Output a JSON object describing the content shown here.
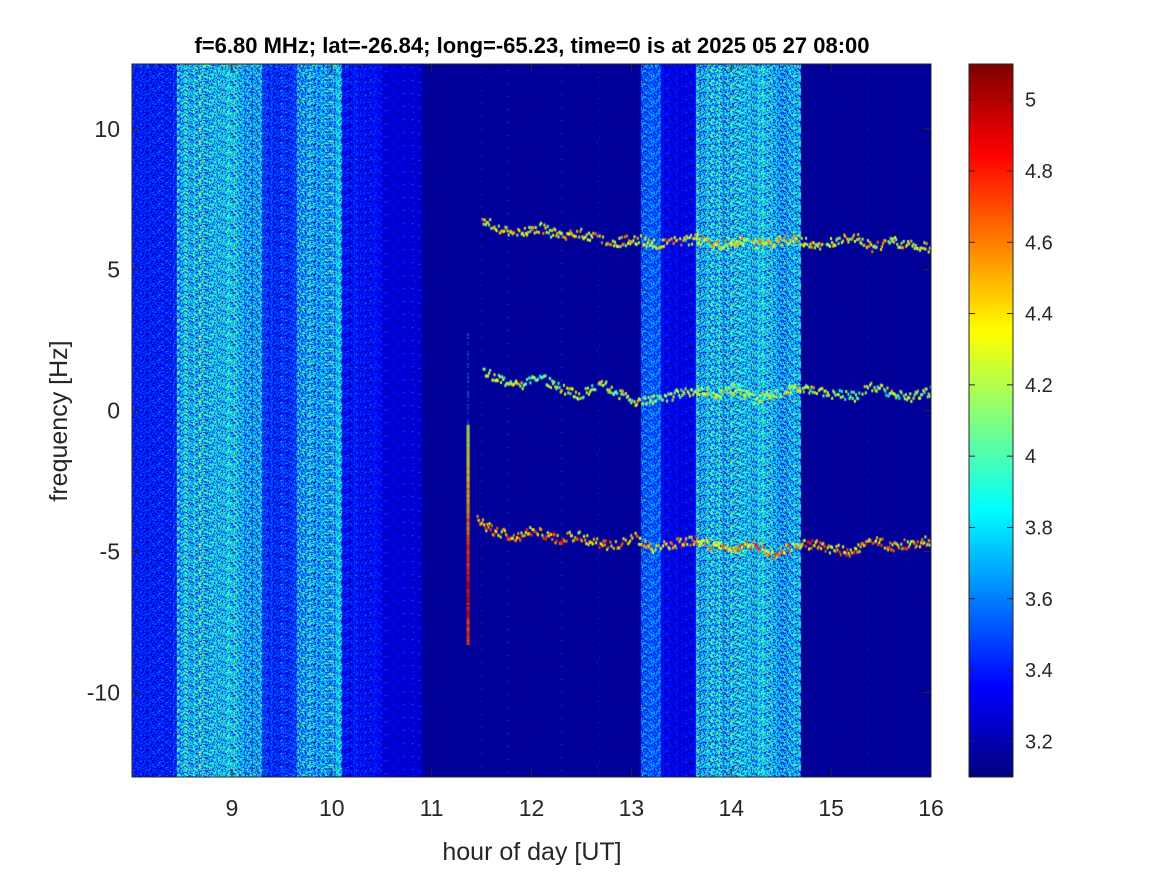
{
  "chart_data": {
    "type": "heatmap",
    "title": "f=6.80 MHz;  lat=-26.84; long=-65.23, time=0 is at 2025 05 27 08:00",
    "xlabel": "hour of day [UT]",
    "ylabel": "frequency [Hz]",
    "xlim": [
      8.0,
      16.0
    ],
    "ylim": [
      -13.0,
      12.3
    ],
    "x_ticks": [
      9,
      10,
      11,
      12,
      13,
      14,
      15,
      16
    ],
    "x_tick_labels": [
      "9",
      "10",
      "11",
      "12",
      "13",
      "14",
      "15",
      "16"
    ],
    "y_ticks": [
      -10,
      -5,
      0,
      5,
      10
    ],
    "y_tick_labels": [
      "-10",
      "-5",
      "0",
      "5",
      "10"
    ],
    "colorbar": {
      "colormap": "jet",
      "clim": [
        3.1,
        5.1
      ],
      "ticks": [
        3.2,
        3.4,
        3.6,
        3.8,
        4.0,
        4.2,
        4.4,
        4.6,
        4.8,
        5.0
      ],
      "tick_labels": [
        "3.2",
        "3.4",
        "3.6",
        "3.8",
        "4",
        "4.2",
        "4.4",
        "4.6",
        "4.8",
        "5"
      ]
    },
    "background_level": 3.15,
    "noise_bands": [
      {
        "x_start": 8.0,
        "x_end": 8.45,
        "level": 3.45
      },
      {
        "x_start": 8.45,
        "x_end": 9.3,
        "level": 3.85
      },
      {
        "x_start": 9.3,
        "x_end": 9.65,
        "level": 3.5
      },
      {
        "x_start": 9.65,
        "x_end": 10.1,
        "level": 3.8
      },
      {
        "x_start": 10.1,
        "x_end": 10.5,
        "level": 3.4
      },
      {
        "x_start": 10.5,
        "x_end": 10.9,
        "level": 3.3
      },
      {
        "x_start": 13.1,
        "x_end": 13.3,
        "level": 3.6
      },
      {
        "x_start": 13.3,
        "x_end": 13.65,
        "level": 3.35
      },
      {
        "x_start": 13.65,
        "x_end": 14.7,
        "level": 3.85
      }
    ],
    "traces": [
      {
        "y": [
          6.8,
          6.4,
          6.3,
          6.5,
          6.2,
          6.3,
          6.1,
          6.0,
          6.1,
          5.9,
          6.0,
          6.1,
          5.9,
          6.0,
          5.9,
          6.0,
          6.1,
          5.9,
          6.0,
          6.2,
          5.8,
          6.0,
          5.9,
          5.8
        ],
        "x_start": 11.5,
        "x_end": 16.0,
        "level": 4.35
      },
      {
        "y": [
          1.4,
          1.1,
          0.9,
          1.2,
          0.8,
          0.5,
          1.0,
          0.6,
          0.3,
          0.4,
          0.6,
          0.7,
          0.5,
          0.8,
          0.4,
          0.6,
          0.8,
          0.7,
          0.6,
          0.5,
          0.9,
          0.6,
          0.5,
          0.7
        ],
        "x_start": 11.5,
        "x_end": 16.0,
        "level": 4.2
      },
      {
        "y": [
          -3.9,
          -4.3,
          -4.5,
          -4.2,
          -4.6,
          -4.4,
          -4.7,
          -4.8,
          -4.5,
          -4.9,
          -4.7,
          -4.6,
          -4.8,
          -4.9,
          -4.7,
          -5.1,
          -4.8,
          -4.7,
          -4.9,
          -5.0,
          -4.6,
          -4.8,
          -4.7,
          -4.6
        ],
        "x_start": 11.45,
        "x_end": 16.0,
        "level": 4.5
      }
    ],
    "vertical_event": {
      "x": 11.35,
      "y_from": -8.3,
      "y_to": -0.5,
      "level": 4.9
    }
  }
}
